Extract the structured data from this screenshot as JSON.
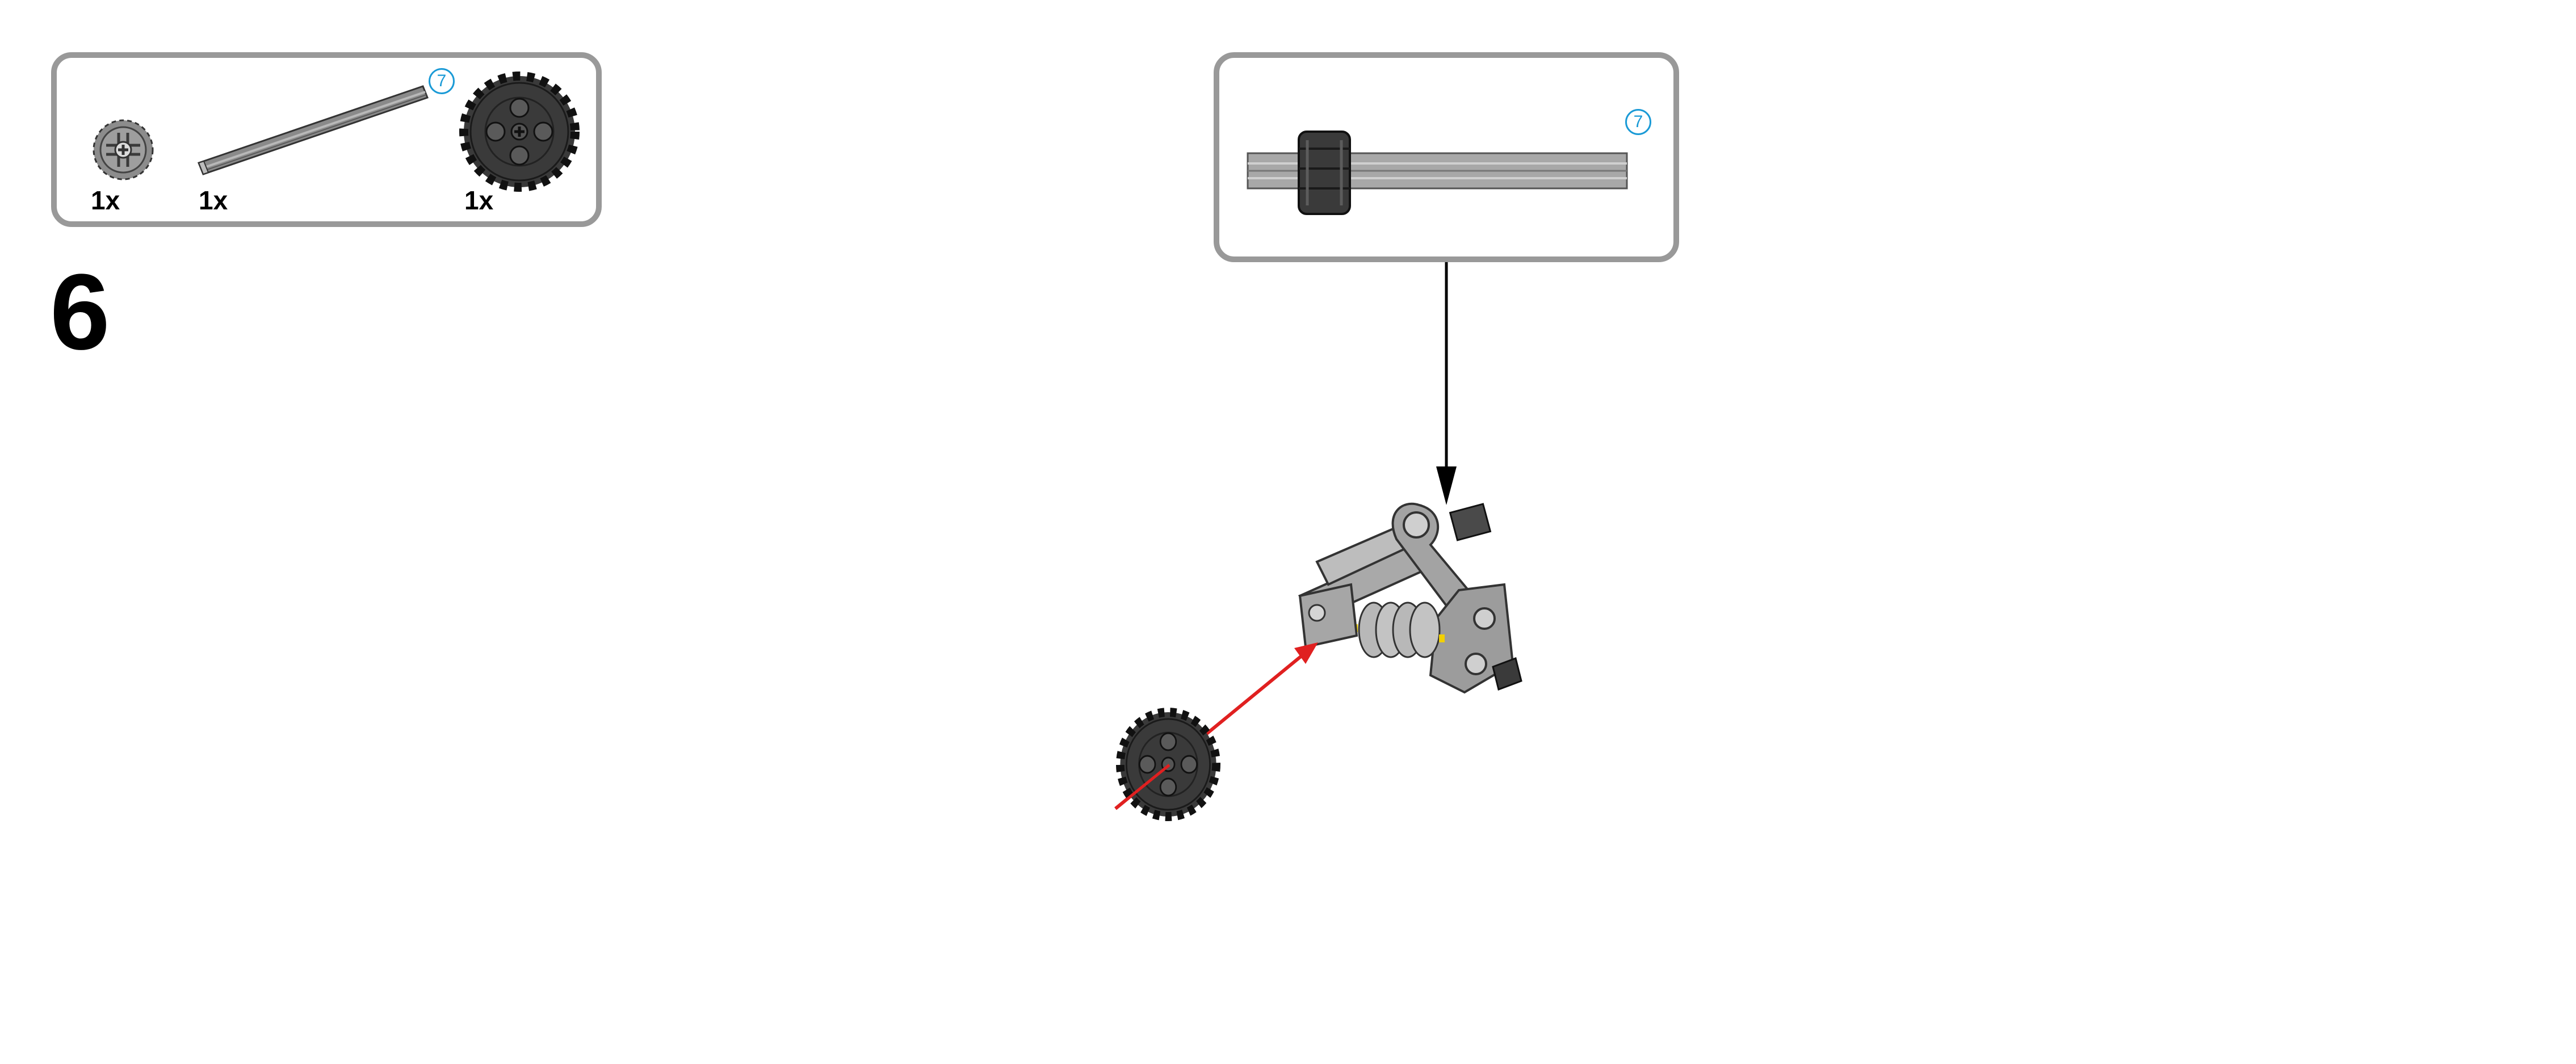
{
  "step": {
    "number": "6"
  },
  "parts_list": [
    {
      "part": "bevel-gear-12",
      "quantity": "1x"
    },
    {
      "part": "axle",
      "quantity": "1x",
      "length_badge": "7"
    },
    {
      "part": "gear-24",
      "quantity": "1x"
    }
  ],
  "submodel_callout": {
    "length_badge": "7"
  },
  "colors": {
    "callout_border": "#999999",
    "badge_blue": "#1a9ad6",
    "part_dark": "#3a3a3a",
    "part_light": "#9a9a9a",
    "arrow_red": "#e02020"
  }
}
